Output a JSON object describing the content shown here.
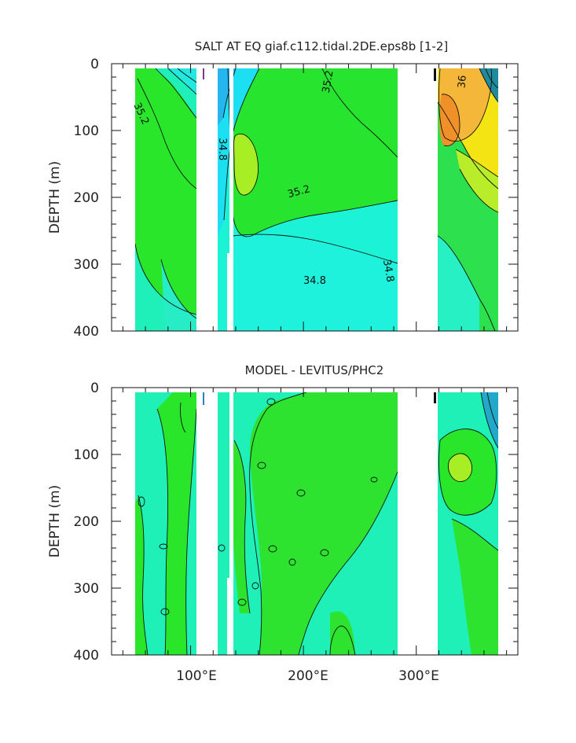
{
  "chart_data": [
    {
      "type": "contour",
      "title": "SALT AT EQ giaf.c112.tidal.2DE.eps8b [1-2]",
      "ylabel": "DEPTH (m)",
      "xlabel": "",
      "xlim": [
        30,
        390
      ],
      "ylim": [
        400,
        0
      ],
      "y_ticks": [
        0,
        100,
        200,
        300,
        400
      ],
      "x_ticks": [
        100,
        200,
        300
      ],
      "x_tick_labels": [
        "100°E",
        "200°E",
        "300°E"
      ],
      "contour_labels": [
        {
          "text": "35.2",
          "x": 56,
          "y": 75,
          "rotate": 65
        },
        {
          "text": "35.2",
          "x": 222,
          "y": 27,
          "rotate": -80
        },
        {
          "text": "36",
          "x": 341,
          "y": 27,
          "rotate": -85
        },
        {
          "text": "34.8",
          "x": 128,
          "y": 128,
          "rotate": 90
        },
        {
          "text": "35.2",
          "x": 196,
          "y": 192,
          "rotate": -15
        },
        {
          "text": "34.8",
          "x": 210,
          "y": 325,
          "rotate": 0
        },
        {
          "text": "34.8",
          "x": 275,
          "y": 310,
          "rotate": 80
        }
      ],
      "land_gaps_lon": [
        [
          98,
          117
        ],
        [
          127,
          129
        ],
        [
          129.5,
          132.5
        ],
        [
          277,
          314
        ]
      ]
    },
    {
      "type": "contour",
      "title": "MODEL - LEVITUS/PHC2",
      "ylabel": "DEPTH (m)",
      "xlabel": "",
      "xlim": [
        30,
        390
      ],
      "ylim": [
        400,
        0
      ],
      "y_ticks": [
        0,
        100,
        200,
        300,
        400
      ],
      "x_ticks": [
        100,
        200,
        300
      ],
      "x_tick_labels": [
        "100°E",
        "200°E",
        "300°E"
      ],
      "land_gaps_lon": [
        [
          98,
          117
        ],
        [
          127,
          129
        ],
        [
          129.5,
          132.5
        ],
        [
          277,
          314
        ]
      ]
    }
  ]
}
